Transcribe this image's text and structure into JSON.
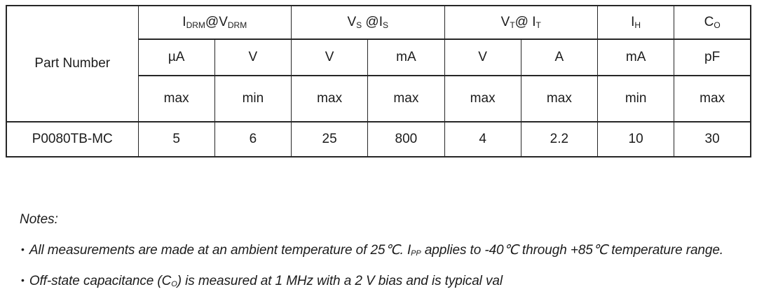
{
  "colors": {
    "background": "#ffffff",
    "text": "#1c1c1c",
    "border": "#262626"
  },
  "table": {
    "part_number_header": "Part Number",
    "groups": [
      {
        "parts": [
          {
            "text": "I"
          },
          {
            "sub": "DRM"
          },
          {
            "text": "@V"
          },
          {
            "sub": "DRM"
          }
        ],
        "span": 2
      },
      {
        "parts": [
          {
            "text": "V"
          },
          {
            "sub": "S"
          },
          {
            "text": " @I"
          },
          {
            "sub": "S"
          }
        ],
        "span": 2
      },
      {
        "parts": [
          {
            "text": "V"
          },
          {
            "sub": "T"
          },
          {
            "text": "@ I"
          },
          {
            "sub": "T"
          }
        ],
        "span": 2
      },
      {
        "parts": [
          {
            "text": "I"
          },
          {
            "sub": "H"
          }
        ],
        "span": 1
      },
      {
        "parts": [
          {
            "text": "C"
          },
          {
            "sub": "O"
          }
        ],
        "span": 1
      }
    ],
    "units": [
      "µA",
      "V",
      "V",
      "mA",
      "V",
      "A",
      "mA",
      "pF"
    ],
    "limits": [
      "max",
      "min",
      "max",
      "max",
      "max",
      "max",
      "min",
      "max"
    ],
    "rows": [
      {
        "part_number": "P0080TB-MC",
        "values": [
          "5",
          "6",
          "25",
          "800",
          "4",
          "2.2",
          "10",
          "30"
        ]
      }
    ]
  },
  "notes": {
    "title": "Notes:",
    "bullet": "•",
    "items": [
      {
        "parts": [
          {
            "text": "All measurements are made at an ambient temperature of 25℃. I"
          },
          {
            "sub": "PP"
          },
          {
            "text": " applies to -40℃ through +85℃ temperature range."
          }
        ]
      },
      {
        "parts": [
          {
            "text": "Off-state capacitance (C"
          },
          {
            "sub": "O"
          },
          {
            "text": ") is measured at 1 MHz with a 2 V bias and is typical val"
          }
        ]
      }
    ]
  }
}
